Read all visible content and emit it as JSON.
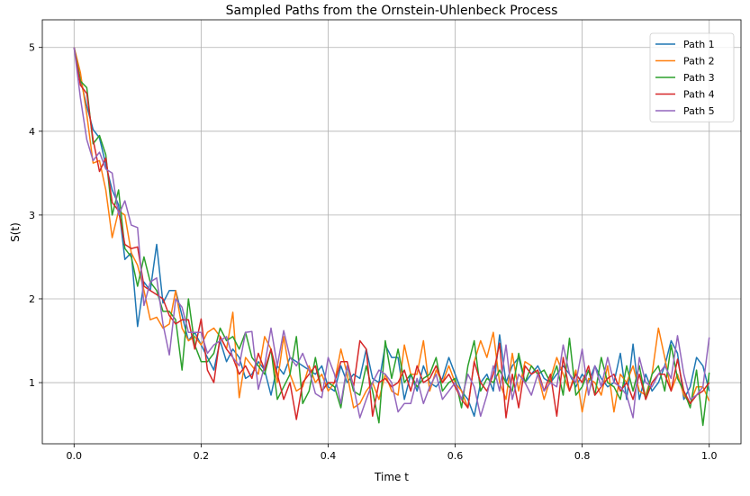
{
  "chart_data": {
    "type": "line",
    "title": "Sampled Paths from the Ornstein-Uhlenbeck Process",
    "xlabel": "Time t",
    "ylabel": "S(t)",
    "xlim": [
      -0.05,
      1.05
    ],
    "ylim": [
      0.27,
      5.33
    ],
    "xticks": [
      "0.0",
      "0.2",
      "0.4",
      "0.6",
      "0.8",
      "1.0"
    ],
    "yticks": [
      "1",
      "2",
      "3",
      "4",
      "5"
    ],
    "grid": true,
    "legend_position": "top-right",
    "x": {
      "start": 0,
      "stop": 1,
      "num": 101
    },
    "series": [
      {
        "name": "Path 1",
        "color": "#1f77b4",
        "values": [
          5.0,
          4.62,
          4.3,
          4.02,
          3.92,
          3.6,
          3.3,
          3.12,
          2.47,
          2.55,
          1.67,
          2.2,
          2.1,
          2.65,
          1.95,
          2.1,
          2.1,
          1.8,
          1.5,
          1.6,
          1.45,
          1.3,
          1.15,
          1.5,
          1.25,
          1.4,
          1.3,
          1.05,
          1.1,
          1.25,
          1.15,
          0.85,
          1.2,
          1.1,
          1.3,
          1.25,
          1.2,
          1.15,
          1.1,
          1.2,
          0.95,
          0.9,
          1.2,
          1.0,
          1.1,
          1.05,
          1.4,
          1.05,
          1.0,
          1.45,
          1.3,
          1.3,
          0.8,
          1.1,
          0.9,
          1.2,
          1.0,
          0.95,
          1.05,
          1.3,
          1.1,
          0.9,
          0.8,
          0.6,
          1.0,
          1.1,
          0.9,
          1.57,
          1.0,
          1.2,
          1.3,
          1.0,
          1.1,
          1.2,
          1.05,
          1.0,
          1.1,
          1.2,
          1.1,
          0.95,
          1.1,
          1.0,
          1.2,
          1.05,
          0.95,
          1.0,
          1.35,
          0.8,
          1.46,
          0.8,
          1.1,
          0.9,
          1.0,
          1.2,
          1.5,
          1.35,
          0.8,
          0.95,
          1.3,
          1.2,
          0.9
        ]
      },
      {
        "name": "Path 2",
        "color": "#ff7f0e",
        "values": [
          5.0,
          4.7,
          4.2,
          3.62,
          3.65,
          3.3,
          2.73,
          3.05,
          3.0,
          2.55,
          2.4,
          2.1,
          1.75,
          1.78,
          1.65,
          1.7,
          2.1,
          1.65,
          1.5,
          1.55,
          1.45,
          1.6,
          1.65,
          1.55,
          1.4,
          1.84,
          0.82,
          1.3,
          1.2,
          1.1,
          1.55,
          1.4,
          1.0,
          1.55,
          1.1,
          0.9,
          0.95,
          1.2,
          1.0,
          1.1,
          0.9,
          1.0,
          1.4,
          1.1,
          0.7,
          0.75,
          0.9,
          1.0,
          0.8,
          1.1,
          0.9,
          0.85,
          1.45,
          1.1,
          1.1,
          1.5,
          0.9,
          1.15,
          1.0,
          1.2,
          1.0,
          0.9,
          0.7,
          1.25,
          1.5,
          1.3,
          1.6,
          1.0,
          0.8,
          1.35,
          0.9,
          1.25,
          1.2,
          1.1,
          0.8,
          1.05,
          1.3,
          1.1,
          0.9,
          1.15,
          0.65,
          1.05,
          1.0,
          0.85,
          1.2,
          0.65,
          1.1,
          1.0,
          1.2,
          0.9,
          0.85,
          1.1,
          1.65,
          1.3,
          0.9,
          1.1,
          0.85,
          0.75,
          0.95,
          0.95,
          0.78
        ]
      },
      {
        "name": "Path 3",
        "color": "#2ca02c",
        "values": [
          5.0,
          4.6,
          4.52,
          3.85,
          3.95,
          3.72,
          3.0,
          3.3,
          2.6,
          2.5,
          2.15,
          2.5,
          2.2,
          2.1,
          1.85,
          1.85,
          1.75,
          1.15,
          2.0,
          1.45,
          1.25,
          1.25,
          1.35,
          1.65,
          1.5,
          1.55,
          1.4,
          1.6,
          1.3,
          1.2,
          1.1,
          1.4,
          0.8,
          0.95,
          1.1,
          1.55,
          0.75,
          0.9,
          1.3,
          0.9,
          1.0,
          0.95,
          0.7,
          1.2,
          0.9,
          0.85,
          1.2,
          0.9,
          0.52,
          1.5,
          1.05,
          1.4,
          1.0,
          1.1,
          0.95,
          1.05,
          1.1,
          1.3,
          0.9,
          1.0,
          1.05,
          0.7,
          1.2,
          1.5,
          0.9,
          1.05,
          1.0,
          1.15,
          1.0,
          0.9,
          1.35,
          1.0,
          1.2,
          1.1,
          1.15,
          1.0,
          1.2,
          0.85,
          1.53,
          0.85,
          0.95,
          1.15,
          0.85,
          1.3,
          1.0,
          0.95,
          0.8,
          1.2,
          0.9,
          1.2,
          0.8,
          1.1,
          1.2,
          0.9,
          1.45,
          1.05,
          0.9,
          0.7,
          1.15,
          0.49,
          1.12
        ]
      },
      {
        "name": "Path 4",
        "color": "#d62728",
        "values": [
          5.0,
          4.55,
          4.45,
          3.9,
          3.52,
          3.68,
          3.15,
          3.05,
          2.65,
          2.6,
          2.62,
          2.15,
          2.1,
          2.05,
          2.0,
          1.8,
          1.7,
          1.75,
          1.75,
          1.4,
          1.76,
          1.15,
          1.0,
          1.55,
          1.4,
          1.3,
          1.1,
          1.2,
          1.05,
          1.35,
          1.15,
          1.4,
          1.1,
          0.8,
          1.0,
          0.56,
          1.0,
          1.1,
          1.2,
          0.9,
          1.0,
          1.0,
          1.25,
          1.25,
          0.95,
          1.5,
          1.4,
          0.6,
          1.0,
          1.05,
          0.95,
          1.0,
          1.15,
          0.9,
          1.2,
          1.0,
          1.05,
          1.2,
          1.0,
          1.1,
          0.95,
          0.8,
          0.7,
          1.25,
          1.0,
          0.9,
          1.1,
          1.47,
          0.58,
          1.1,
          0.7,
          1.2,
          1.1,
          1.15,
          0.9,
          1.1,
          0.6,
          1.3,
          0.9,
          1.1,
          1.0,
          1.2,
          0.85,
          0.95,
          1.05,
          1.1,
          0.9,
          1.0,
          0.8,
          1.1,
          0.8,
          1.0,
          1.1,
          1.1,
          0.9,
          1.28,
          0.9,
          0.75,
          0.85,
          0.9,
          1.0
        ]
      },
      {
        "name": "Path 5",
        "color": "#9467bd",
        "values": [
          5.0,
          4.4,
          3.9,
          3.65,
          3.75,
          3.55,
          3.5,
          3.0,
          3.17,
          2.88,
          2.85,
          1.92,
          2.2,
          2.25,
          1.7,
          1.33,
          2.0,
          1.9,
          1.6,
          1.6,
          1.6,
          1.35,
          1.45,
          1.5,
          1.55,
          1.3,
          1.2,
          1.6,
          1.61,
          0.92,
          1.2,
          1.65,
          1.2,
          1.62,
          1.3,
          1.2,
          1.35,
          1.15,
          0.87,
          0.82,
          1.3,
          1.1,
          0.75,
          1.2,
          0.95,
          0.58,
          0.8,
          1.0,
          1.15,
          1.1,
          1.0,
          0.65,
          0.75,
          0.75,
          1.05,
          0.75,
          0.95,
          1.1,
          0.8,
          0.9,
          1.0,
          0.8,
          1.1,
          0.95,
          0.6,
          0.85,
          1.2,
          0.9,
          1.45,
          0.8,
          1.1,
          1.0,
          0.85,
          1.1,
          0.9,
          1.0,
          0.95,
          1.45,
          1.1,
          1.0,
          1.4,
          0.85,
          1.2,
          0.95,
          1.3,
          1.0,
          0.95,
          0.85,
          0.58,
          1.3,
          1.0,
          0.95,
          1.1,
          1.2,
          1.05,
          1.56,
          1.1,
          0.8,
          0.85,
          0.95,
          1.54
        ]
      }
    ]
  }
}
